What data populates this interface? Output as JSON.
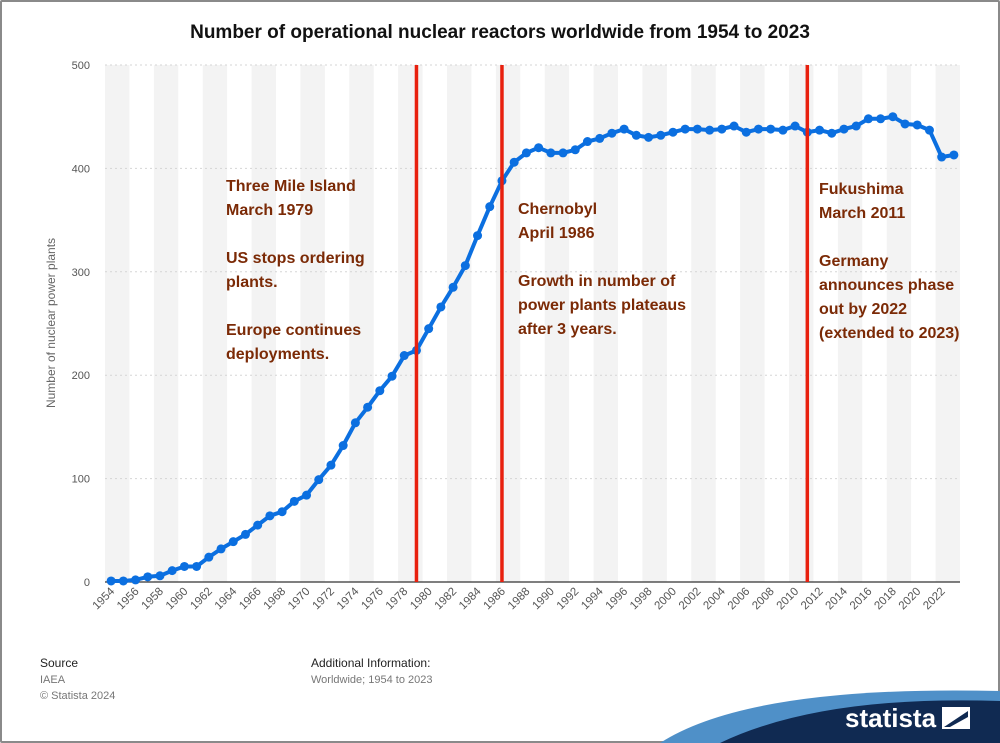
{
  "chart_data": {
    "type": "line",
    "title": "Number of operational nuclear reactors worldwide from 1954 to 2023",
    "ylabel": "Number of nuclear power plants",
    "xlabel": "",
    "ylim": [
      0,
      500
    ],
    "yticks": [
      0,
      100,
      200,
      300,
      400,
      500
    ],
    "xtick_labels": [
      "1954",
      "1956",
      "1958",
      "1960",
      "1962",
      "1964",
      "1966",
      "1968",
      "1970",
      "1972",
      "1974",
      "1976",
      "1978",
      "1980",
      "1982",
      "1984",
      "1986",
      "1988",
      "1990",
      "1992",
      "1994",
      "1996",
      "1998",
      "2000",
      "2002",
      "2004",
      "2006",
      "2008",
      "2010",
      "2012",
      "2014",
      "2016",
      "2018",
      "2020",
      "2022"
    ],
    "series": [
      {
        "x": [
          1954,
          1955,
          1956,
          1957,
          1958,
          1959,
          1960,
          1961,
          1962,
          1963,
          1964,
          1965,
          1966,
          1967,
          1968,
          1969,
          1970,
          1971,
          1972,
          1973,
          1974,
          1975,
          1976,
          1977,
          1978,
          1979,
          1980,
          1981,
          1982,
          1983,
          1984,
          1985,
          1986,
          1987,
          1988,
          1989,
          1990,
          1991,
          1992,
          1993,
          1994,
          1995,
          1996,
          1997,
          1998,
          1999,
          2000,
          2001,
          2002,
          2003,
          2004,
          2005,
          2006,
          2007,
          2008,
          2009,
          2010,
          2011,
          2012,
          2013,
          2014,
          2015,
          2016,
          2017,
          2018,
          2019,
          2020,
          2021,
          2022,
          2023
        ],
        "values": [
          1,
          1,
          2,
          5,
          6,
          11,
          15,
          15,
          24,
          32,
          39,
          46,
          55,
          64,
          68,
          78,
          84,
          99,
          113,
          132,
          154,
          169,
          185,
          199,
          219,
          224,
          245,
          266,
          285,
          306,
          335,
          363,
          388,
          406,
          415,
          420,
          415,
          415,
          418,
          426,
          429,
          434,
          438,
          432,
          430,
          432,
          435,
          438,
          438,
          437,
          438,
          441,
          435,
          438,
          438,
          437,
          441,
          435,
          437,
          434,
          438,
          441,
          448,
          448,
          450,
          443,
          442,
          437,
          411,
          413
        ]
      }
    ],
    "events": [
      {
        "year": 1979,
        "lines": [
          "Three Mile Island",
          "March 1979",
          "",
          "US stops ordering",
          "plants.",
          "",
          "Europe continues",
          "deployments."
        ]
      },
      {
        "year": 1986,
        "lines": [
          "Chernobyl",
          "April 1986",
          "",
          "Growth in number of",
          "power plants plateaus",
          "after 3 years."
        ]
      },
      {
        "year": 2011,
        "lines": [
          "Fukushima",
          "March 2011",
          "",
          "Germany",
          "announces phase",
          "out by 2022",
          "(extended to 2023)"
        ]
      }
    ],
    "colors": {
      "line": "#0b6fe0",
      "event_line": "#e8200e",
      "event_text": "#7b2a06",
      "band": "#f3f3f3",
      "grid": "#d5d5d5",
      "axis": "#333333"
    },
    "grid": true
  },
  "footer": {
    "source_label": "Source",
    "source_value": "IAEA",
    "copyright": "© Statista 2024",
    "info_label": "Additional Information:",
    "info_value": "Worldwide; 1954 to 2023"
  },
  "brand": {
    "name": "statista",
    "logo_icon": "statista-flag-icon"
  }
}
